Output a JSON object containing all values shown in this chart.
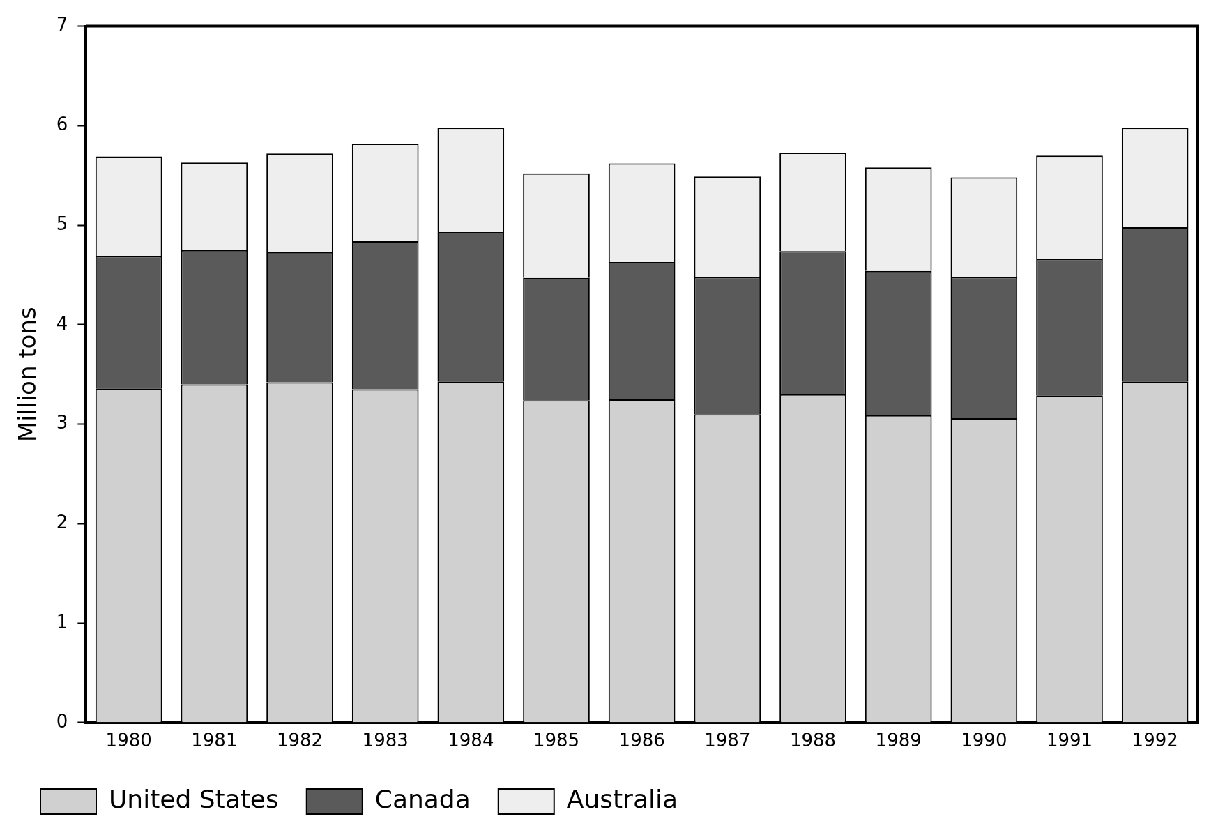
{
  "chart_data": {
    "type": "bar",
    "stacked": true,
    "ylabel": "Million tons",
    "categories": [
      "1980",
      "1981",
      "1982",
      "1983",
      "1984",
      "1985",
      "1986",
      "1987",
      "1988",
      "1989",
      "1990",
      "1991",
      "1992"
    ],
    "series": [
      {
        "name": "United States",
        "color": "#d0d0d0",
        "values": [
          3.36,
          3.4,
          3.42,
          3.35,
          3.43,
          3.24,
          3.25,
          3.1,
          3.3,
          3.09,
          3.06,
          3.29,
          3.43
        ]
      },
      {
        "name": "Canada",
        "color": "#5a5a5a",
        "values": [
          1.33,
          1.35,
          1.31,
          1.49,
          1.5,
          1.23,
          1.38,
          1.38,
          1.44,
          1.45,
          1.42,
          1.37,
          1.55
        ]
      },
      {
        "name": "Australia",
        "color": "#eeeeee",
        "values": [
          1.0,
          0.88,
          0.99,
          0.98,
          1.05,
          1.05,
          0.99,
          1.01,
          0.99,
          1.04,
          1.0,
          1.04,
          1.0
        ]
      }
    ],
    "ylim": [
      0,
      7
    ],
    "yticks": [
      0,
      1,
      2,
      3,
      4,
      5,
      6,
      7
    ],
    "grid": false,
    "legend": "bottom"
  }
}
